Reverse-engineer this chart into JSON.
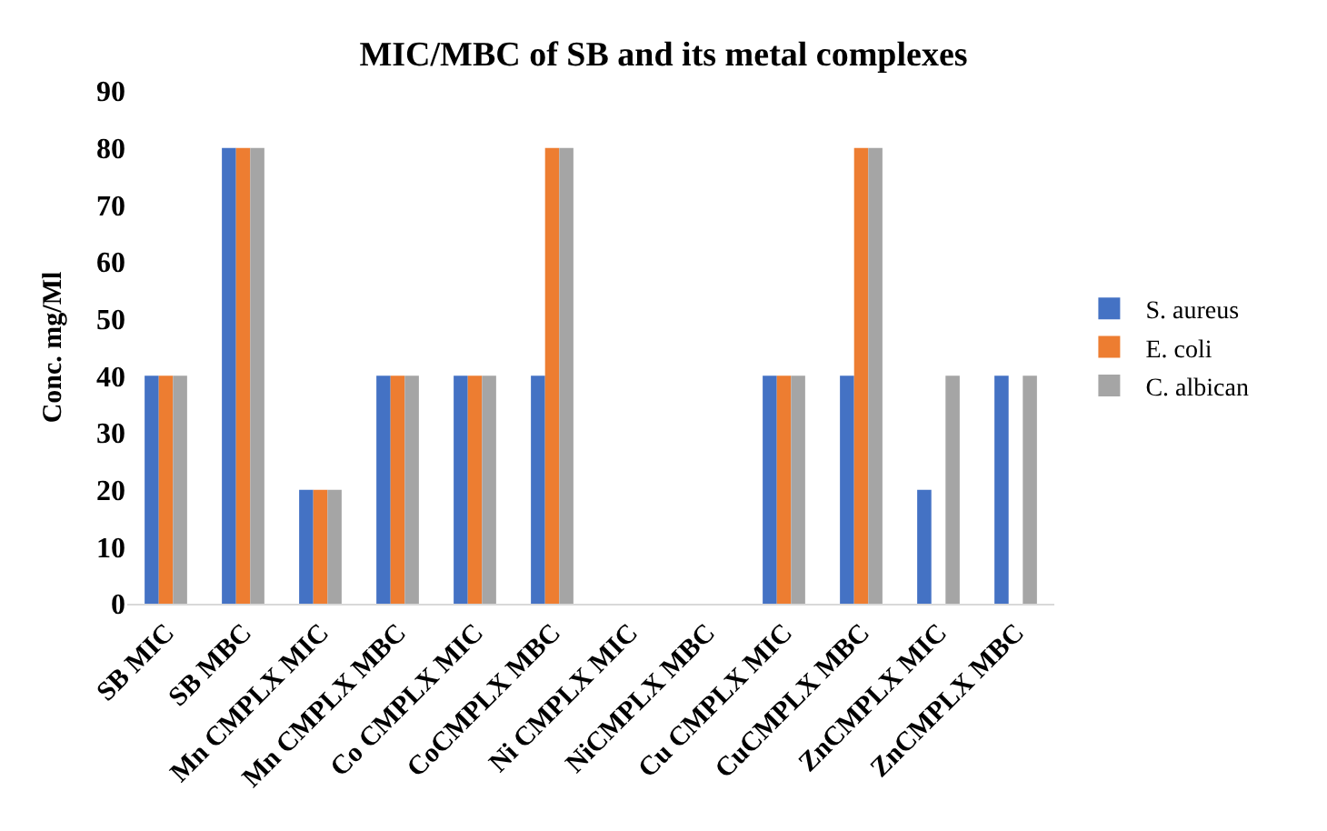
{
  "chart_data": {
    "type": "bar",
    "title": "MIC/MBC of SB and its metal complexes",
    "ylabel": "Conc. mg/Ml",
    "categories": [
      "SB MIC",
      "SB MBC",
      "Mn CMPLX MIC",
      "Mn CMPLX MBC",
      "Co CMPLX MIC",
      "CoCMPLX MBC",
      "Ni CMPLX MIC",
      "NiCMPLX MBC",
      "Cu CMPLX MIC",
      "CuCMPLX MBC",
      "ZnCMPLX MIC",
      "ZnCMPLX MBC"
    ],
    "series": [
      {
        "name": "S. aureus",
        "color": "#4472c4",
        "values": [
          40,
          80,
          20,
          40,
          40,
          40,
          null,
          null,
          40,
          40,
          20,
          40
        ]
      },
      {
        "name": "E. coli",
        "color": "#ed7d31",
        "values": [
          40,
          80,
          20,
          40,
          40,
          80,
          null,
          null,
          40,
          80,
          null,
          null
        ]
      },
      {
        "name": "C. albican",
        "color": "#a5a5a5",
        "values": [
          40,
          80,
          20,
          40,
          40,
          80,
          null,
          null,
          40,
          80,
          40,
          40
        ]
      }
    ],
    "ylim": [
      0,
      90
    ],
    "yticks": [
      0,
      10,
      20,
      30,
      40,
      50,
      60,
      70,
      80,
      90
    ],
    "grid": false,
    "legend": "right"
  }
}
